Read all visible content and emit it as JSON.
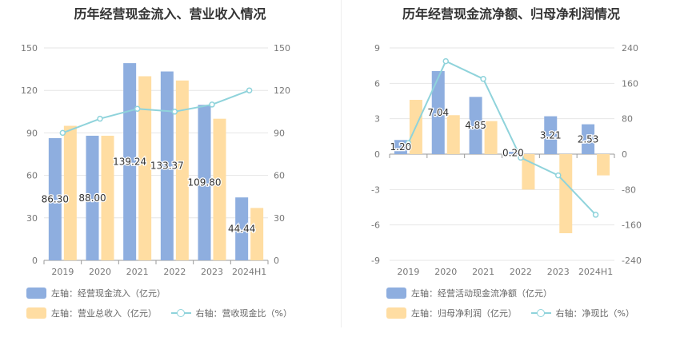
{
  "colors": {
    "bar_primary": "#8eaedf",
    "bar_secondary": "#ffdda2",
    "line": "#8fd3db",
    "grid": "#e6e6e6",
    "axis_text": "#777777",
    "label_text": "#333333"
  },
  "chart_data": [
    {
      "type": "bar",
      "title": "历年经营现金流入、营业收入情况",
      "categories": [
        "2019",
        "2020",
        "2021",
        "2022",
        "2023",
        "2024H1"
      ],
      "y_left": {
        "min": 0,
        "max": 150,
        "ticks": [
          "0",
          "30",
          "60",
          "90",
          "120",
          "150"
        ]
      },
      "y_right": {
        "min": 0,
        "max": 150,
        "ticks": [
          "0",
          "30",
          "60",
          "90",
          "120",
          "150"
        ]
      },
      "grid": true,
      "legend_position": "bottom-left",
      "series": [
        {
          "name": "左轴：经营现金流入（亿元）",
          "kind": "bar",
          "axis": "left",
          "values": [
            86.3,
            88.0,
            139.24,
            133.37,
            109.8,
            44.44
          ],
          "labels": [
            "86.30",
            "88.00",
            "139.24",
            "133.37",
            "109.80",
            "44.44"
          ]
        },
        {
          "name": "左轴：营业总收入（亿元）",
          "kind": "bar",
          "axis": "left",
          "values": [
            95,
            88,
            130,
            127,
            100,
            37
          ]
        },
        {
          "name": "右轴：营收现金比（%）",
          "kind": "line",
          "axis": "right",
          "values": [
            90,
            100,
            107,
            105,
            110,
            120
          ]
        }
      ]
    },
    {
      "type": "bar",
      "title": "历年经营现金流净额、归母净利润情况",
      "categories": [
        "2019",
        "2020",
        "2021",
        "2022",
        "2023",
        "2024H1"
      ],
      "y_left": {
        "min": -9,
        "max": 9,
        "ticks": [
          "-9",
          "-6",
          "-3",
          "0",
          "3",
          "6",
          "9"
        ]
      },
      "y_right": {
        "min": -240,
        "max": 240,
        "ticks": [
          "-240",
          "-160",
          "-80",
          "0",
          "80",
          "160",
          "240"
        ]
      },
      "grid": true,
      "legend_position": "bottom-left",
      "series": [
        {
          "name": "左轴：经营活动现金流净额（亿元）",
          "kind": "bar",
          "axis": "left",
          "values": [
            1.2,
            7.04,
            4.85,
            0.2,
            3.21,
            2.53
          ],
          "labels": [
            "1.20",
            "7.04",
            "4.85",
            "0.20",
            "3.21",
            "2.53"
          ]
        },
        {
          "name": "左轴：归母净利润（亿元）",
          "kind": "bar",
          "axis": "left",
          "values": [
            4.6,
            3.3,
            2.8,
            -3.0,
            -6.7,
            -1.8
          ]
        },
        {
          "name": "右轴：净现比（%）",
          "kind": "line",
          "axis": "right",
          "values": [
            25,
            210,
            170,
            -8,
            -48,
            -137
          ]
        }
      ]
    }
  ]
}
